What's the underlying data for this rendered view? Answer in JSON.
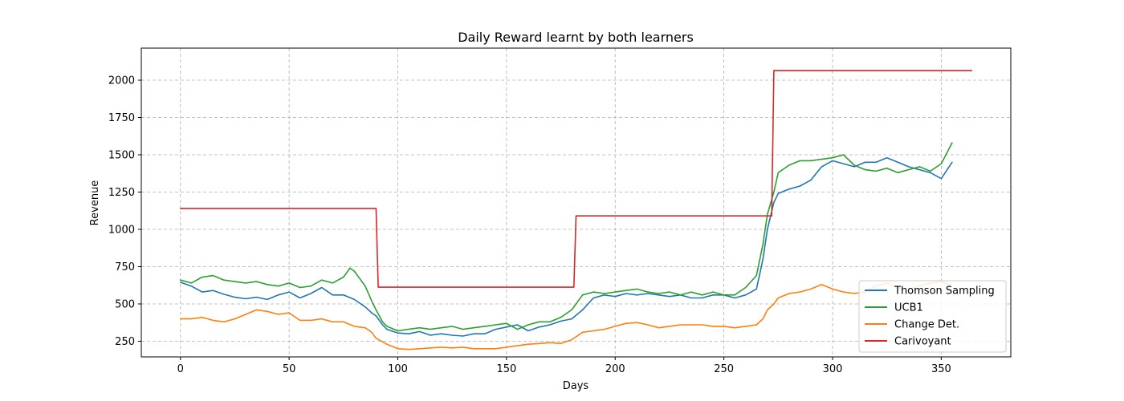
{
  "chart_data": {
    "type": "line",
    "title": "Daily Reward learnt by both learners",
    "xlabel": "Days",
    "ylabel": "Revenue",
    "xlim": [
      -18,
      382
    ],
    "ylim": [
      145,
      2215
    ],
    "xticks": [
      0,
      50,
      100,
      150,
      200,
      250,
      300,
      350
    ],
    "yticks": [
      250,
      500,
      750,
      1000,
      1250,
      1500,
      1750,
      2000
    ],
    "grid": true,
    "legend_position": "lower-right",
    "series": [
      {
        "name": "Thomson Sampling",
        "color": "#1f77b4",
        "x": [
          0,
          5,
          10,
          15,
          20,
          25,
          30,
          35,
          40,
          45,
          50,
          55,
          60,
          65,
          70,
          75,
          80,
          85,
          88,
          90,
          93,
          95,
          100,
          105,
          110,
          115,
          120,
          125,
          130,
          135,
          140,
          145,
          150,
          155,
          160,
          165,
          170,
          175,
          180,
          185,
          190,
          195,
          200,
          205,
          210,
          215,
          220,
          225,
          230,
          235,
          240,
          245,
          250,
          255,
          260,
          265,
          268,
          270,
          273,
          275,
          280,
          285,
          290,
          295,
          300,
          305,
          310,
          315,
          320,
          325,
          330,
          335,
          340,
          345,
          350,
          355
        ],
        "values": [
          645,
          620,
          580,
          590,
          565,
          545,
          535,
          545,
          530,
          560,
          580,
          540,
          570,
          610,
          560,
          560,
          530,
          480,
          440,
          420,
          360,
          330,
          305,
          300,
          315,
          290,
          300,
          290,
          285,
          300,
          300,
          330,
          345,
          360,
          320,
          345,
          360,
          385,
          400,
          460,
          540,
          560,
          550,
          570,
          560,
          570,
          560,
          550,
          560,
          540,
          540,
          560,
          560,
          540,
          560,
          600,
          800,
          1000,
          1180,
          1240,
          1270,
          1290,
          1330,
          1420,
          1460,
          1440,
          1420,
          1450,
          1450,
          1480,
          1450,
          1420,
          1400,
          1380,
          1340,
          1450
        ]
      },
      {
        "name": "UCB1",
        "color": "#2ca02c",
        "x": [
          0,
          5,
          10,
          15,
          20,
          25,
          30,
          35,
          40,
          45,
          50,
          55,
          60,
          65,
          70,
          75,
          78,
          80,
          85,
          88,
          90,
          93,
          95,
          100,
          105,
          110,
          115,
          120,
          125,
          130,
          135,
          140,
          145,
          150,
          155,
          160,
          165,
          170,
          175,
          180,
          185,
          190,
          195,
          200,
          205,
          210,
          215,
          220,
          225,
          230,
          235,
          240,
          245,
          250,
          255,
          260,
          265,
          268,
          270,
          273,
          275,
          280,
          285,
          290,
          295,
          300,
          305,
          310,
          315,
          320,
          325,
          330,
          335,
          340,
          345,
          350,
          355
        ],
        "values": [
          660,
          640,
          680,
          690,
          660,
          650,
          640,
          650,
          630,
          620,
          640,
          610,
          620,
          660,
          640,
          680,
          740,
          720,
          620,
          520,
          460,
          380,
          350,
          320,
          330,
          340,
          330,
          340,
          350,
          330,
          340,
          350,
          360,
          370,
          330,
          360,
          380,
          380,
          410,
          460,
          560,
          580,
          570,
          580,
          590,
          600,
          580,
          570,
          580,
          560,
          580,
          560,
          580,
          560,
          560,
          610,
          690,
          900,
          1100,
          1250,
          1380,
          1430,
          1460,
          1460,
          1470,
          1480,
          1500,
          1430,
          1400,
          1390,
          1410,
          1380,
          1400,
          1420,
          1390,
          1440,
          1580
        ]
      },
      {
        "name": "Change Det.",
        "color": "#ff7f0e",
        "x": [
          0,
          5,
          10,
          15,
          20,
          25,
          30,
          35,
          40,
          45,
          50,
          55,
          60,
          65,
          70,
          75,
          80,
          85,
          88,
          90,
          95,
          100,
          105,
          110,
          115,
          120,
          125,
          130,
          135,
          140,
          145,
          150,
          155,
          160,
          165,
          170,
          175,
          180,
          185,
          190,
          195,
          200,
          205,
          210,
          215,
          220,
          225,
          230,
          235,
          240,
          245,
          250,
          255,
          260,
          265,
          268,
          270,
          273,
          275,
          280,
          285,
          290,
          295,
          300,
          305,
          310,
          315,
          320,
          325,
          330,
          335,
          340,
          345,
          350,
          355
        ],
        "values": [
          400,
          400,
          410,
          390,
          380,
          400,
          430,
          460,
          450,
          430,
          440,
          390,
          390,
          400,
          380,
          380,
          350,
          340,
          310,
          270,
          230,
          200,
          195,
          200,
          205,
          210,
          205,
          210,
          200,
          200,
          200,
          210,
          220,
          230,
          235,
          240,
          235,
          260,
          310,
          320,
          330,
          350,
          370,
          375,
          360,
          340,
          350,
          360,
          360,
          360,
          350,
          350,
          340,
          350,
          360,
          400,
          460,
          500,
          540,
          570,
          580,
          600,
          630,
          600,
          580,
          570,
          580,
          620,
          640,
          610,
          600,
          620,
          640,
          650,
          620
        ]
      },
      {
        "name": "Carivoyant",
        "color": "#d62728",
        "x": [
          0,
          90,
          91,
          181,
          182,
          272,
          273,
          364
        ],
        "values": [
          1140,
          1140,
          612,
          612,
          1090,
          1090,
          2065,
          2065
        ]
      }
    ]
  }
}
